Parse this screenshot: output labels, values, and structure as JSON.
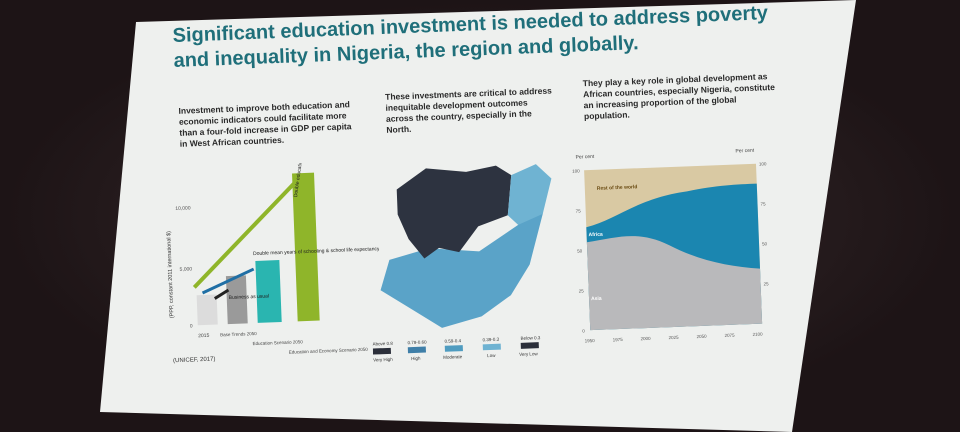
{
  "slide": {
    "title": "Significant education investment is needed to address poverty and inequality in Nigeria, the region and globally.",
    "col1_text": "Investment to improve both education and economic indicators could facilitate more than a four-fold increase in GDP per capita in West African countries.",
    "col2_text": "These investments are critical to address inequitable development outcomes across the country, especially in the North.",
    "col3_text": "They play a key role in global development as African countries, especially Nigeria, constitute an increasing proportion of the global population.",
    "source": "(UNICEF, 2017)"
  },
  "bar_panel": {
    "ylabel": "(PPP, constant 2011 international $)",
    "yticks": [
      "0",
      "5,000",
      "10,000"
    ],
    "categories": [
      "2015",
      "Base Trends 2050",
      "Education Scenario 2050",
      "Education and Economy Scenario 2050"
    ],
    "annotations": [
      "Business as usual",
      "Double mean years of schooling & school life expectancy",
      "Double education indicators and economic indicators"
    ],
    "colors": {
      "2015": "#dcdcdc",
      "base": "#9a9a9a",
      "edu": "#2ab5b0",
      "econ": "#8fb52a"
    }
  },
  "map_panel": {
    "legend": [
      {
        "range": "Above 0.8",
        "label": "Very High",
        "color": "#2b2f3a"
      },
      {
        "range": "0.79-0.60",
        "label": "High",
        "color": "#3f7fa8"
      },
      {
        "range": "0.59-0.4",
        "label": "Moderate",
        "color": "#4f9cc0"
      },
      {
        "range": "0.39-0.3",
        "label": "Low",
        "color": "#6fb3d2"
      },
      {
        "range": "Below 0.3",
        "label": "Very Low",
        "color": "#2b2f3a"
      }
    ]
  },
  "area_panel": {
    "ylabel_left": "Per cent",
    "ylabel_right": "Per cent",
    "yticks": [
      "0",
      "25",
      "50",
      "75",
      "100"
    ],
    "xticks": [
      "1950",
      "1975",
      "2000",
      "2025",
      "2050",
      "2075",
      "2100"
    ],
    "series_labels": [
      "Rest of the world",
      "Africa",
      "Asia"
    ],
    "colors": {
      "rest": "#d9c9a3",
      "africa": "#1b86b0",
      "asia": "#b9b9bb"
    }
  }
}
